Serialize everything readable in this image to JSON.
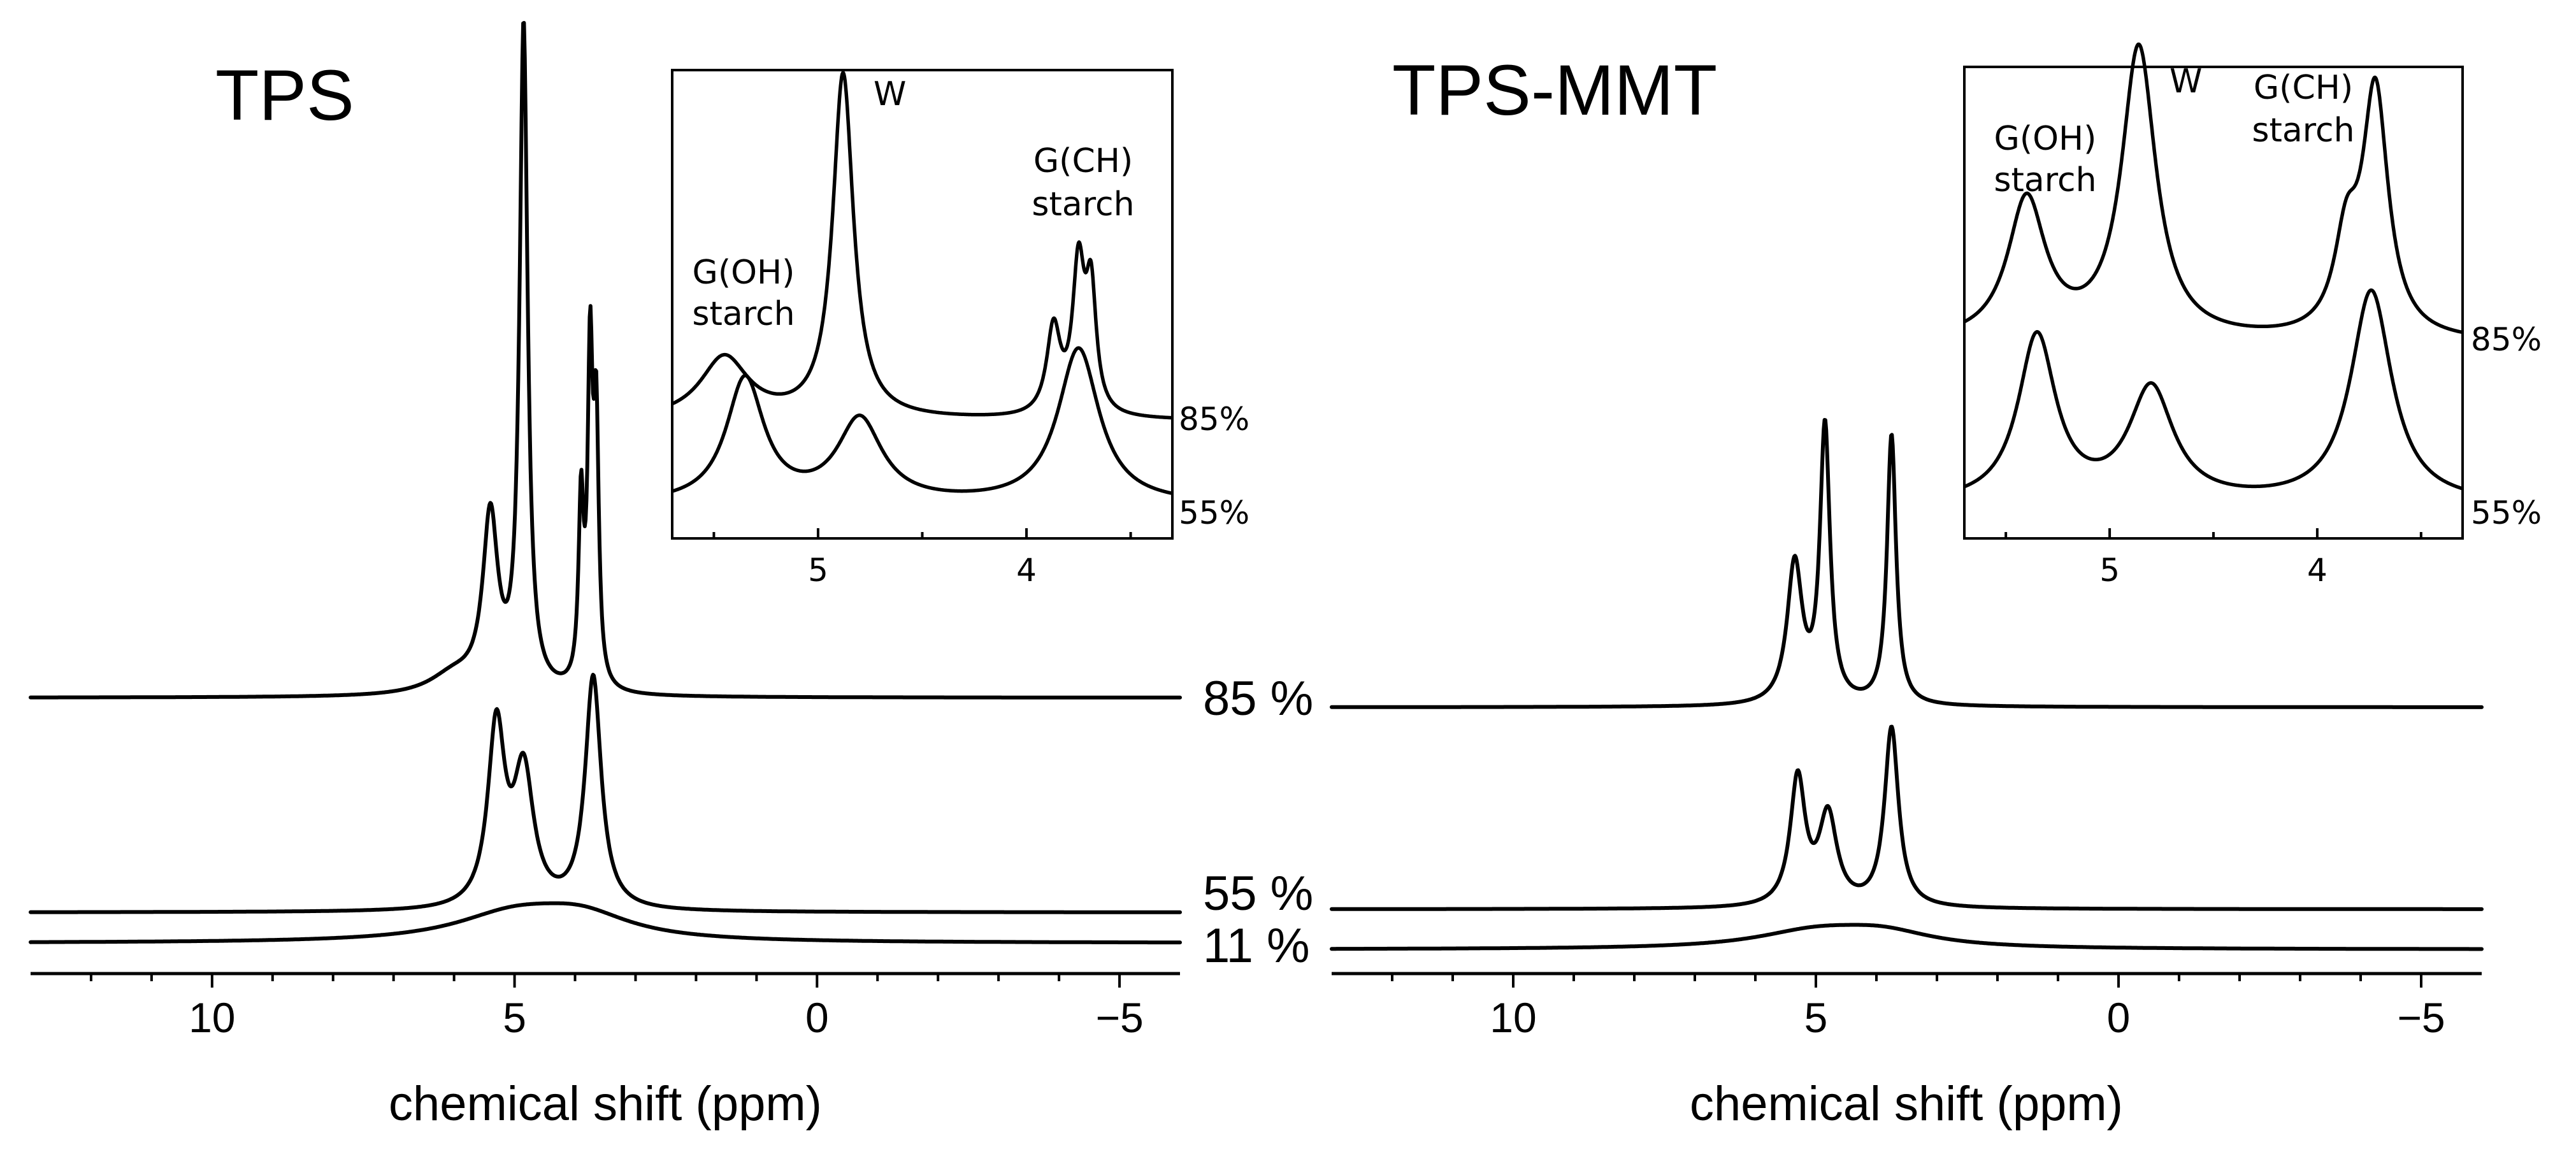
{
  "chart_data": [
    {
      "type": "line",
      "title": "TPS",
      "xlabel": "chemical shift (ppm)",
      "ylabel": "",
      "xlim": [
        13,
        -6
      ],
      "reversed_x": true,
      "x_ticks": [
        "10",
        "5",
        "0",
        "−5"
      ],
      "x_tick_values": [
        10,
        5,
        0,
        -5
      ],
      "series": [
        {
          "name": "85 %",
          "peaks": [
            {
              "center": 5.4,
              "height": 0.26,
              "width": 0.15
            },
            {
              "center": 4.85,
              "height": 1.0,
              "width": 0.08
            },
            {
              "center": 3.9,
              "height": 0.27,
              "width": 0.05
            },
            {
              "center": 3.75,
              "height": 0.48,
              "width": 0.05
            },
            {
              "center": 3.65,
              "height": 0.38,
              "width": 0.05
            },
            {
              "center": 6.0,
              "height": 0.03,
              "width": 0.5
            }
          ]
        },
        {
          "name": "55 %",
          "peaks": [
            {
              "center": 5.3,
              "height": 0.27,
              "width": 0.17
            },
            {
              "center": 4.85,
              "height": 0.2,
              "width": 0.2
            },
            {
              "center": 3.7,
              "height": 0.35,
              "width": 0.16
            }
          ]
        },
        {
          "name": "11 %",
          "peaks": [
            {
              "center": 5.0,
              "height": 0.04,
              "width": 1.2
            },
            {
              "center": 3.9,
              "height": 0.035,
              "width": 1.0
            }
          ]
        }
      ],
      "inset": {
        "xlim": [
          5.7,
          3.3
        ],
        "x_ticks": [
          "5",
          "4"
        ],
        "x_tick_values": [
          5,
          4
        ],
        "series": [
          {
            "name": "85%",
            "peaks": [
              {
                "center": 5.45,
                "height": 0.18,
                "width": 0.14
              },
              {
                "center": 4.88,
                "height": 1.0,
                "width": 0.06
              },
              {
                "center": 3.87,
                "height": 0.25,
                "width": 0.04
              },
              {
                "center": 3.75,
                "height": 0.42,
                "width": 0.035
              },
              {
                "center": 3.69,
                "height": 0.34,
                "width": 0.03
              }
            ]
          },
          {
            "name": "55%",
            "peaks": [
              {
                "center": 5.35,
                "height": 0.36,
                "width": 0.11
              },
              {
                "center": 4.8,
                "height": 0.24,
                "width": 0.13
              },
              {
                "center": 3.75,
                "height": 0.45,
                "width": 0.12
              }
            ]
          }
        ],
        "annotations": {
          "w": "W",
          "goh_line1": "G(OH)",
          "goh_line2": "starch",
          "gch_line1": "G(CH)",
          "gch_line2": "starch"
        }
      }
    },
    {
      "type": "line",
      "title": "TPS-MMT",
      "xlabel": "chemical shift (ppm)",
      "ylabel": "",
      "xlim": [
        13,
        -6
      ],
      "reversed_x": true,
      "x_ticks": [
        "10",
        "5",
        "0",
        "−5"
      ],
      "x_tick_values": [
        10,
        5,
        0,
        -5
      ],
      "series": [
        {
          "name": "85 %",
          "peaks": [
            {
              "center": 5.35,
              "height": 0.28,
              "width": 0.15
            },
            {
              "center": 4.85,
              "height": 0.55,
              "width": 0.1
            },
            {
              "center": 3.75,
              "height": 0.54,
              "width": 0.09
            }
          ]
        },
        {
          "name": "55 %",
          "peaks": [
            {
              "center": 5.3,
              "height": 0.27,
              "width": 0.15
            },
            {
              "center": 4.8,
              "height": 0.19,
              "width": 0.18
            },
            {
              "center": 3.75,
              "height": 0.38,
              "width": 0.14
            }
          ]
        },
        {
          "name": "11 %",
          "peaks": [
            {
              "center": 5.0,
              "height": 0.035,
              "width": 1.2
            },
            {
              "center": 3.9,
              "height": 0.03,
              "width": 1.0
            }
          ]
        }
      ],
      "inset": {
        "xlim": [
          5.7,
          3.3
        ],
        "x_ticks": [
          "5",
          "4"
        ],
        "x_tick_values": [
          5,
          4
        ],
        "series": [
          {
            "name": "85%",
            "peaks": [
              {
                "center": 5.4,
                "height": 0.42,
                "width": 0.11
              },
              {
                "center": 4.86,
                "height": 0.88,
                "width": 0.1
              },
              {
                "center": 3.86,
                "height": 0.26,
                "width": 0.07
              },
              {
                "center": 3.72,
                "height": 0.74,
                "width": 0.075
              }
            ]
          },
          {
            "name": "55%",
            "peaks": [
              {
                "center": 5.35,
                "height": 0.5,
                "width": 0.11
              },
              {
                "center": 4.8,
                "height": 0.34,
                "width": 0.13
              },
              {
                "center": 3.74,
                "height": 0.64,
                "width": 0.12
              }
            ]
          }
        ],
        "annotations": {
          "w": "W",
          "goh_line1": "G(OH)",
          "goh_line2": "starch",
          "gch_line1": "G(CH)",
          "gch_line2": "starch"
        }
      }
    }
  ]
}
